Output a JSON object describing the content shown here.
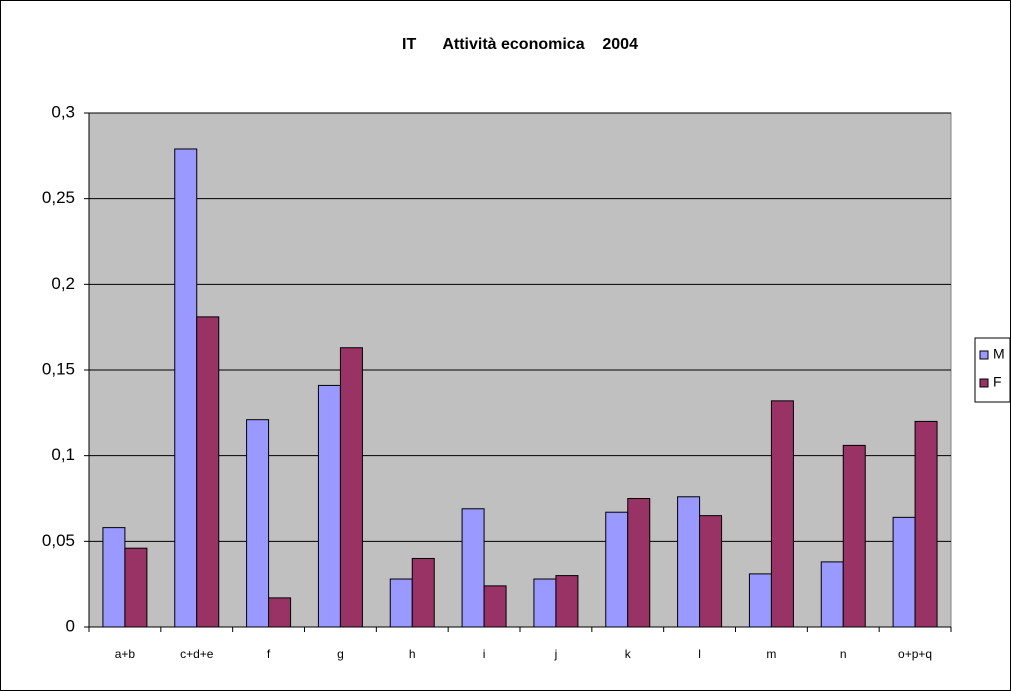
{
  "chart_data": {
    "type": "bar",
    "title": "IT      Attività economica    2004",
    "categories": [
      "a+b",
      "c+d+e",
      "f",
      "g",
      "h",
      "i",
      "j",
      "k",
      "l",
      "m",
      "n",
      "o+p+q"
    ],
    "series": [
      {
        "name": "M",
        "color": "#9999ff",
        "values": [
          0.058,
          0.279,
          0.121,
          0.141,
          0.028,
          0.069,
          0.028,
          0.067,
          0.076,
          0.031,
          0.038,
          0.064
        ]
      },
      {
        "name": "F",
        "color": "#993366",
        "values": [
          0.046,
          0.181,
          0.017,
          0.163,
          0.04,
          0.024,
          0.03,
          0.075,
          0.065,
          0.132,
          0.106,
          0.12
        ]
      }
    ],
    "ylim": [
      0,
      0.3
    ],
    "yticks": [
      0,
      {
        "value": 0.05,
        "label": "0,05"
      },
      {
        "value": 0.1,
        "label": "0,1"
      },
      {
        "value": 0.15,
        "label": "0,15"
      },
      {
        "value": 0.2,
        "label": "0,2"
      },
      {
        "value": 0.25,
        "label": "0,25"
      },
      {
        "value": 0.3,
        "label": "0,3"
      }
    ],
    "grid": true,
    "legend": "right",
    "background": "#c0c0c0"
  }
}
